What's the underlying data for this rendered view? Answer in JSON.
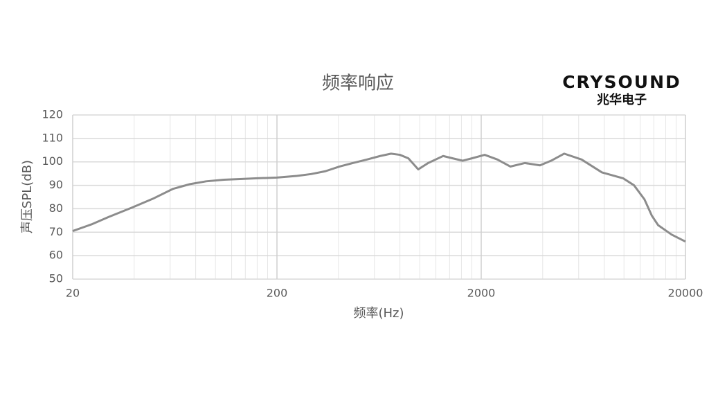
{
  "chart_data": {
    "type": "line",
    "title": "频率响应",
    "brand": "CRYSOUND",
    "brand_subtitle": "兆华电子",
    "x_label": "频率(Hz)",
    "y_label": "声压SPL(dB)",
    "x_scale": "log",
    "grid": true,
    "xlim": [
      20,
      20000
    ],
    "xticks": [
      20,
      200,
      2000,
      20000
    ],
    "ylim": [
      50,
      120
    ],
    "yticks": [
      50,
      60,
      70,
      80,
      90,
      100,
      110,
      120
    ],
    "series": [
      {
        "name": "频率响应",
        "color": "#8c8c8c",
        "x": [
          20,
          25,
          30,
          39,
          50,
          62,
          75,
          90,
          110,
          135,
          160,
          200,
          250,
          294,
          345,
          405,
          470,
          552,
          640,
          724,
          800,
          880,
          983,
          1100,
          1302,
          1450,
          1620,
          1800,
          2080,
          2400,
          2777,
          3269,
          3880,
          4400,
          5100,
          6200,
          7800,
          9900,
          11200,
          12600,
          13700,
          14700,
          17100,
          20000
        ],
        "values": [
          70.5,
          73.5,
          76.5,
          80.5,
          84.5,
          88.5,
          90.5,
          91.7,
          92.4,
          92.7,
          93,
          93.3,
          94,
          94.8,
          96,
          98,
          99.5,
          101,
          102.5,
          103.5,
          103,
          101.5,
          96.8,
          99.5,
          102.5,
          101.5,
          100.5,
          101.5,
          103,
          101,
          98,
          99.5,
          98.5,
          100.5,
          103.5,
          101,
          95.5,
          93,
          90,
          84,
          77,
          73,
          69,
          66
        ]
      }
    ]
  }
}
